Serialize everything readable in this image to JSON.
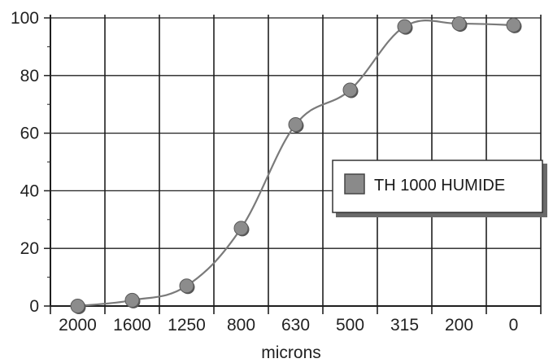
{
  "chart_data": {
    "type": "line",
    "title": "",
    "xlabel": "microns",
    "ylabel": "",
    "categories": [
      "2000",
      "1600",
      "1250",
      "800",
      "630",
      "500",
      "315",
      "200",
      "0"
    ],
    "series": [
      {
        "name": "TH 1000 HUMIDE",
        "values": [
          0,
          2,
          7,
          27,
          63,
          75,
          97,
          98,
          97.5
        ]
      }
    ],
    "ylim": [
      0,
      100
    ],
    "yticks": [
      0,
      20,
      40,
      60,
      80,
      100
    ],
    "grid": true,
    "legend": "right",
    "colors": {
      "line": "#7a7a7a",
      "marker": "#8c8c8c",
      "grid": "#1f1f1f",
      "legend_box": "#8a8a8a"
    }
  }
}
